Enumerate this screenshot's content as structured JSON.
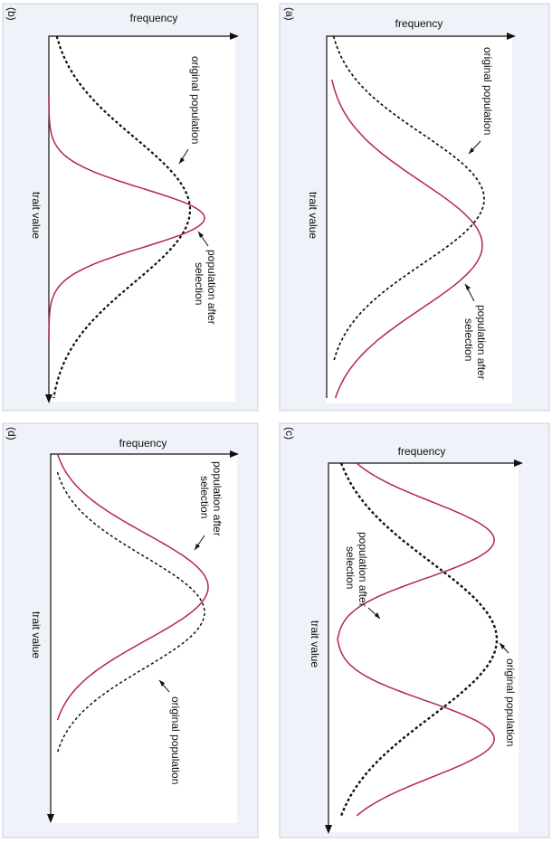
{
  "panels": {
    "a": {
      "letter": "(a)",
      "frequency": "frequency",
      "trait": "trait value",
      "original": "original population",
      "after_line1": "population after",
      "after_line2": "selection",
      "type": "directional"
    },
    "b": {
      "letter": "(b)",
      "frequency": "frequency",
      "trait": "trait value",
      "original": "original population",
      "after_line1": "population after",
      "after_line2": "selection",
      "type": "stabilizing"
    },
    "c": {
      "letter": "(c)",
      "frequency": "frequency",
      "trait": "trait value",
      "original": "original population",
      "after_line1": "population after",
      "after_line2": "selection",
      "type": "disruptive"
    },
    "d": {
      "letter": "(d)",
      "frequency": "frequency",
      "trait": "trait value",
      "original": "original population",
      "after_line1": "population after",
      "after_line2": "selection",
      "type": "directional"
    }
  },
  "colors": {
    "original": "#111111",
    "after": "#b3235a",
    "panel_bg": "#eff2f8"
  }
}
